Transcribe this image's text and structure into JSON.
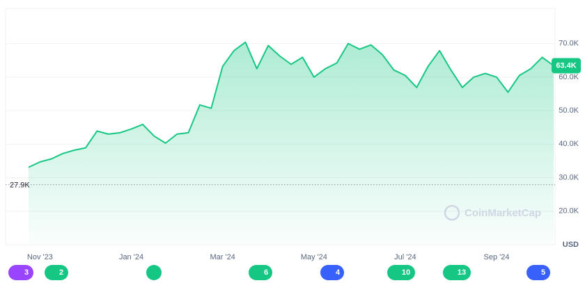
{
  "chart_data": {
    "type": "line",
    "categories": [
      null,
      "Nov '23",
      null,
      null,
      null,
      null,
      null,
      null,
      null,
      "Jan '24",
      null,
      null,
      null,
      null,
      null,
      null,
      null,
      "Mar '24",
      null,
      null,
      null,
      null,
      null,
      null,
      null,
      "May '24",
      null,
      null,
      null,
      null,
      null,
      null,
      null,
      "Jul '24",
      null,
      null,
      null,
      null,
      null,
      null,
      null,
      "Sep '24",
      null,
      null,
      null,
      null,
      null
    ],
    "values": [
      33100,
      34700,
      35600,
      37200,
      38200,
      38900,
      43900,
      43000,
      43400,
      44500,
      45900,
      42400,
      40300,
      43000,
      43400,
      51700,
      50700,
      63200,
      67900,
      70400,
      62500,
      69400,
      66300,
      63800,
      65900,
      60000,
      62500,
      64200,
      70000,
      68300,
      69600,
      66700,
      62100,
      60500,
      56900,
      63200,
      67900,
      62100,
      56900,
      60000,
      61100,
      60000,
      55500,
      60500,
      62500,
      65900,
      63400
    ],
    "color": "#16c784",
    "ylim": [
      10000,
      80500
    ],
    "yticks": [
      {
        "value": 20000,
        "label": "20.0K"
      },
      {
        "value": 30000,
        "label": "30.0K"
      },
      {
        "value": 40000,
        "label": "40.0K"
      },
      {
        "value": 50000,
        "label": "50.0K"
      },
      {
        "value": 60000,
        "label": "60.0K"
      },
      {
        "value": 70000,
        "label": "70.0K"
      }
    ],
    "grid": true,
    "baseline": {
      "value": 27900,
      "label": "27.9K"
    },
    "current_price": {
      "value": 63400,
      "label": "63.4K"
    },
    "currency": "USD",
    "watermark": "CoinMarketCap",
    "events": [
      "3",
      "2",
      "6",
      "4",
      "10",
      "13",
      "5"
    ]
  }
}
